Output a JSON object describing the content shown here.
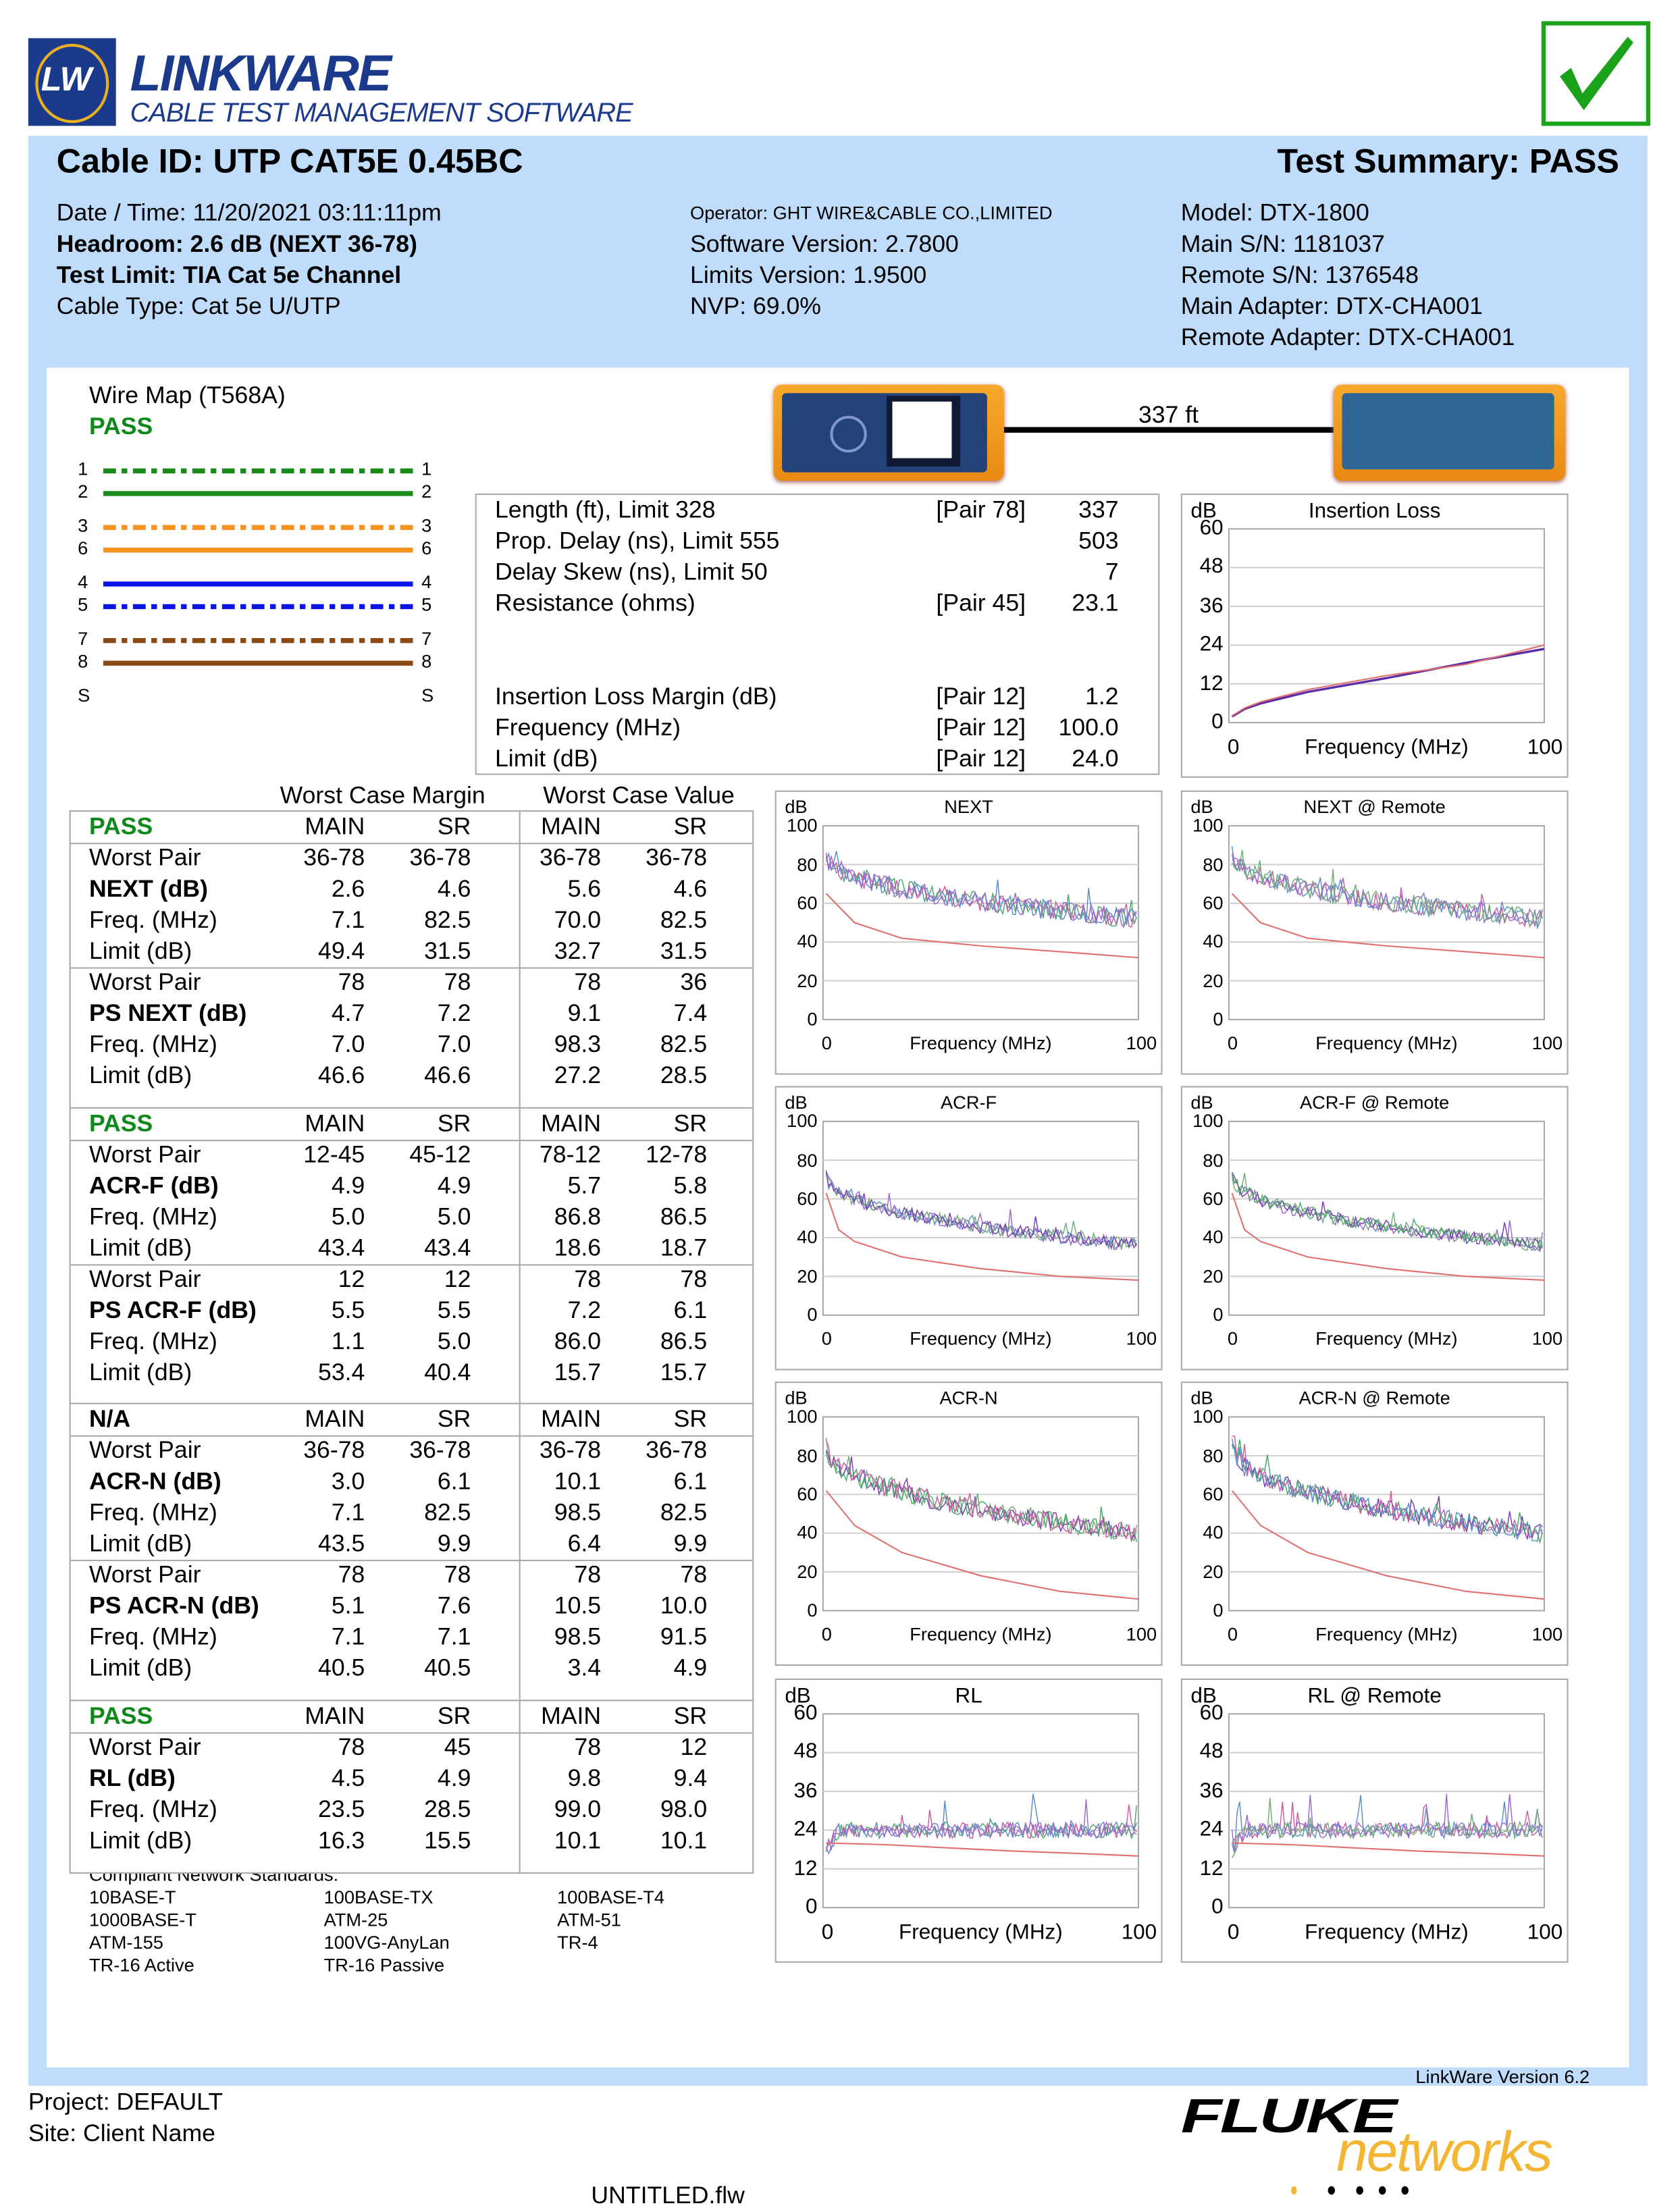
{
  "logo": {
    "mark": "LW",
    "name": "LinkWare",
    "tagline": "CABLE TEST MANAGEMENT SOFTWARE"
  },
  "pass_icon": "checkmark-icon",
  "header": {
    "cable_id": "Cable ID: UTP CAT5E 0.45BC",
    "test_summary": "Test Summary: PASS"
  },
  "info": {
    "col1": [
      "Date / Time: 11/20/2021 03:11:11pm",
      "Headroom: 2.6 dB (NEXT 36-78)",
      "Test Limit: TIA Cat 5e Channel",
      "Cable Type: Cat 5e U/UTP"
    ],
    "col2": [
      "Operator: GHT WIRE&CABLE CO.,LIMITED",
      "Software Version: 2.7800",
      "Limits Version: 1.9500",
      "NVP: 69.0%"
    ],
    "col3": [
      "Model: DTX-1800",
      "Main S/N: 1181037",
      "Remote S/N: 1376548",
      "Main Adapter: DTX-CHA001",
      "Remote Adapter: DTX-CHA001"
    ]
  },
  "wiremap": {
    "title": "Wire Map (T568A)",
    "status": "PASS",
    "wires": [
      {
        "pin": "1",
        "color": "#1a8a1a",
        "dashed": true
      },
      {
        "pin": "2",
        "color": "#1a8a1a",
        "dashed": false
      },
      {
        "pin": "3",
        "color": "#f7931e",
        "dashed": true
      },
      {
        "pin": "6",
        "color": "#f7931e",
        "dashed": false
      },
      {
        "pin": "4",
        "color": "#0a14e6",
        "dashed": false
      },
      {
        "pin": "5",
        "color": "#0a14e6",
        "dashed": true
      },
      {
        "pin": "7",
        "color": "#8b4a12",
        "dashed": true
      },
      {
        "pin": "8",
        "color": "#8b4a12",
        "dashed": false
      }
    ],
    "shield": "S"
  },
  "link": {
    "length_label": "337 ft"
  },
  "summary_rows": [
    {
      "label": "Length (ft), Limit 328",
      "pair": "[Pair 78]",
      "value": "337"
    },
    {
      "label": "Prop. Delay (ns), Limit 555",
      "pair": "",
      "value": "503"
    },
    {
      "label": "Delay Skew (ns), Limit 50",
      "pair": "",
      "value": "7"
    },
    {
      "label": "Resistance (ohms)",
      "pair": "[Pair 45]",
      "value": "23.1"
    },
    {
      "label": "Insertion Loss Margin (dB)",
      "pair": "[Pair 12]",
      "value": "1.2"
    },
    {
      "label": "Frequency (MHz)",
      "pair": "[Pair 12]",
      "value": "100.0"
    },
    {
      "label": "Limit (dB)",
      "pair": "[Pair 12]",
      "value": "24.0"
    }
  ],
  "table_headers": {
    "margin": "Worst Case Margin",
    "value": "Worst Case Value"
  },
  "tables": [
    {
      "status": "PASS",
      "status_color": "#0f8a1a",
      "cols": [
        "MAIN",
        "SR",
        "MAIN",
        "SR"
      ],
      "groups": [
        [
          {
            "label": "Worst Pair",
            "bold": false,
            "v": [
              "36-78",
              "36-78",
              "36-78",
              "36-78"
            ]
          },
          {
            "label": "NEXT (dB)",
            "bold": true,
            "v": [
              "2.6",
              "4.6",
              "5.6",
              "4.6"
            ]
          },
          {
            "label": "Freq. (MHz)",
            "bold": false,
            "v": [
              "7.1",
              "82.5",
              "70.0",
              "82.5"
            ]
          },
          {
            "label": "Limit (dB)",
            "bold": false,
            "v": [
              "49.4",
              "31.5",
              "32.7",
              "31.5"
            ]
          }
        ],
        [
          {
            "label": "Worst Pair",
            "bold": false,
            "v": [
              "78",
              "78",
              "78",
              "36"
            ]
          },
          {
            "label": "PS NEXT (dB)",
            "bold": true,
            "v": [
              "4.7",
              "7.2",
              "9.1",
              "7.4"
            ]
          },
          {
            "label": "Freq. (MHz)",
            "bold": false,
            "v": [
              "7.0",
              "7.0",
              "98.3",
              "82.5"
            ]
          },
          {
            "label": "Limit (dB)",
            "bold": false,
            "v": [
              "46.6",
              "46.6",
              "27.2",
              "28.5"
            ]
          }
        ]
      ]
    },
    {
      "status": "PASS",
      "status_color": "#0f8a1a",
      "cols": [
        "MAIN",
        "SR",
        "MAIN",
        "SR"
      ],
      "groups": [
        [
          {
            "label": "Worst Pair",
            "bold": false,
            "v": [
              "12-45",
              "45-12",
              "78-12",
              "12-78"
            ]
          },
          {
            "label": "ACR-F (dB)",
            "bold": true,
            "v": [
              "4.9",
              "4.9",
              "5.7",
              "5.8"
            ]
          },
          {
            "label": "Freq. (MHz)",
            "bold": false,
            "v": [
              "5.0",
              "5.0",
              "86.8",
              "86.5"
            ]
          },
          {
            "label": "Limit (dB)",
            "bold": false,
            "v": [
              "43.4",
              "43.4",
              "18.6",
              "18.7"
            ]
          }
        ],
        [
          {
            "label": "Worst Pair",
            "bold": false,
            "v": [
              "12",
              "12",
              "78",
              "78"
            ]
          },
          {
            "label": "PS ACR-F (dB)",
            "bold": true,
            "v": [
              "5.5",
              "5.5",
              "7.2",
              "6.1"
            ]
          },
          {
            "label": "Freq. (MHz)",
            "bold": false,
            "v": [
              "1.1",
              "5.0",
              "86.0",
              "86.5"
            ]
          },
          {
            "label": "Limit (dB)",
            "bold": false,
            "v": [
              "53.4",
              "40.4",
              "15.7",
              "15.7"
            ]
          }
        ]
      ]
    },
    {
      "status": "N/A",
      "status_color": "#000000",
      "cols": [
        "MAIN",
        "SR",
        "MAIN",
        "SR"
      ],
      "groups": [
        [
          {
            "label": "Worst Pair",
            "bold": false,
            "v": [
              "36-78",
              "36-78",
              "36-78",
              "36-78"
            ]
          },
          {
            "label": "ACR-N (dB)",
            "bold": true,
            "v": [
              "3.0",
              "6.1",
              "10.1",
              "6.1"
            ]
          },
          {
            "label": "Freq. (MHz)",
            "bold": false,
            "v": [
              "7.1",
              "82.5",
              "98.5",
              "82.5"
            ]
          },
          {
            "label": "Limit (dB)",
            "bold": false,
            "v": [
              "43.5",
              "9.9",
              "6.4",
              "9.9"
            ]
          }
        ],
        [
          {
            "label": "Worst Pair",
            "bold": false,
            "v": [
              "78",
              "78",
              "78",
              "78"
            ]
          },
          {
            "label": "PS ACR-N (dB)",
            "bold": true,
            "v": [
              "5.1",
              "7.6",
              "10.5",
              "10.0"
            ]
          },
          {
            "label": "Freq. (MHz)",
            "bold": false,
            "v": [
              "7.1",
              "7.1",
              "98.5",
              "91.5"
            ]
          },
          {
            "label": "Limit (dB)",
            "bold": false,
            "v": [
              "40.5",
              "40.5",
              "3.4",
              "4.9"
            ]
          }
        ]
      ]
    },
    {
      "status": "PASS",
      "status_color": "#0f8a1a",
      "cols": [
        "MAIN",
        "SR",
        "MAIN",
        "SR"
      ],
      "groups": [
        [
          {
            "label": "Worst Pair",
            "bold": false,
            "v": [
              "78",
              "45",
              "78",
              "12"
            ]
          },
          {
            "label": "RL (dB)",
            "bold": true,
            "v": [
              "4.5",
              "4.9",
              "9.8",
              "9.4"
            ]
          },
          {
            "label": "Freq. (MHz)",
            "bold": false,
            "v": [
              "23.5",
              "28.5",
              "99.0",
              "98.0"
            ]
          },
          {
            "label": "Limit (dB)",
            "bold": false,
            "v": [
              "16.3",
              "15.5",
              "10.1",
              "10.1"
            ]
          }
        ]
      ]
    }
  ],
  "standards": {
    "title": "Compliant Network Standards:",
    "items": [
      "10BASE-T",
      "100BASE-TX",
      "100BASE-T4",
      "1000BASE-T",
      "ATM-25",
      "ATM-51",
      "ATM-155",
      "100VG-AnyLan",
      "TR-4",
      "TR-16 Active",
      "TR-16 Passive"
    ]
  },
  "chart_data": [
    {
      "id": "il",
      "type": "line",
      "title": "Insertion Loss",
      "ylabel": "dB",
      "xlabel": "Frequency (MHz)",
      "xlim": [
        0,
        100
      ],
      "ylim": [
        0,
        60
      ],
      "yticks": [
        60,
        48,
        36,
        24,
        12,
        0
      ],
      "xticks": [
        "0",
        "100"
      ],
      "big": true,
      "limit": {
        "x": [
          1,
          5,
          10,
          25,
          50,
          75,
          100
        ],
        "y": [
          2.1,
          4.5,
          6.4,
          10.2,
          14.6,
          18.0,
          24.0
        ]
      },
      "series": [
        {
          "name": "measured",
          "color": "#5a2ca8",
          "x": [
            1,
            5,
            10,
            25,
            50,
            75,
            100
          ],
          "y": [
            1.9,
            4.2,
            5.9,
            9.5,
            13.8,
            18.5,
            22.8
          ]
        }
      ]
    },
    {
      "id": "next",
      "type": "line",
      "title": "NEXT",
      "ylabel": "dB",
      "xlabel": "Frequency (MHz)",
      "xlim": [
        0,
        100
      ],
      "ylim": [
        0,
        100
      ],
      "yticks": [
        100,
        80,
        60,
        40,
        20,
        0
      ],
      "xticks": [
        "0",
        "100"
      ],
      "big": false,
      "limit": {
        "x": [
          1,
          10,
          25,
          50,
          75,
          100
        ],
        "y": [
          65,
          50,
          42,
          38,
          35,
          32
        ]
      },
      "noise": {
        "start": 85,
        "end": 52,
        "amp": 10,
        "seed": 3
      }
    },
    {
      "id": "next_remote",
      "type": "line",
      "title": "NEXT @ Remote",
      "ylabel": "dB",
      "xlabel": "Frequency (MHz)",
      "xlim": [
        0,
        100
      ],
      "ylim": [
        0,
        100
      ],
      "yticks": [
        100,
        80,
        60,
        40,
        20,
        0
      ],
      "xticks": [
        "0",
        "100"
      ],
      "big": false,
      "limit": {
        "x": [
          1,
          10,
          25,
          50,
          75,
          100
        ],
        "y": [
          65,
          50,
          42,
          38,
          35,
          32
        ]
      },
      "noise": {
        "start": 85,
        "end": 52,
        "amp": 10,
        "seed": 7
      }
    },
    {
      "id": "acrf",
      "type": "line",
      "title": "ACR-F",
      "ylabel": "dB",
      "xlabel": "Frequency (MHz)",
      "xlim": [
        0,
        100
      ],
      "ylim": [
        0,
        100
      ],
      "yticks": [
        100,
        80,
        60,
        40,
        20,
        0
      ],
      "xticks": [
        "0",
        "100"
      ],
      "big": false,
      "limit": {
        "x": [
          1,
          5,
          10,
          25,
          50,
          75,
          100
        ],
        "y": [
          63,
          44,
          38,
          30,
          24,
          20,
          18
        ]
      },
      "noise": {
        "start": 72,
        "end": 36,
        "amp": 7,
        "seed": 11
      }
    },
    {
      "id": "acrf_remote",
      "type": "line",
      "title": "ACR-F @ Remote",
      "ylabel": "dB",
      "xlabel": "Frequency (MHz)",
      "xlim": [
        0,
        100
      ],
      "ylim": [
        0,
        100
      ],
      "yticks": [
        100,
        80,
        60,
        40,
        20,
        0
      ],
      "xticks": [
        "0",
        "100"
      ],
      "big": false,
      "limit": {
        "x": [
          1,
          5,
          10,
          25,
          50,
          75,
          100
        ],
        "y": [
          63,
          44,
          38,
          30,
          24,
          20,
          18
        ]
      },
      "noise": {
        "start": 72,
        "end": 36,
        "amp": 7,
        "seed": 13
      }
    },
    {
      "id": "acrn",
      "type": "line",
      "title": "ACR-N",
      "ylabel": "dB",
      "xlabel": "Frequency (MHz)",
      "xlim": [
        0,
        100
      ],
      "ylim": [
        0,
        100
      ],
      "yticks": [
        100,
        80,
        60,
        40,
        20,
        0
      ],
      "xticks": [
        "0",
        "100"
      ],
      "big": false,
      "limit": {
        "x": [
          1,
          10,
          25,
          50,
          75,
          100
        ],
        "y": [
          62,
          44,
          30,
          18,
          10,
          6
        ]
      },
      "noise": {
        "start": 85,
        "end": 40,
        "amp": 10,
        "seed": 17
      }
    },
    {
      "id": "acrn_remote",
      "type": "line",
      "title": "ACR-N @ Remote",
      "ylabel": "dB",
      "xlabel": "Frequency (MHz)",
      "xlim": [
        0,
        100
      ],
      "ylim": [
        0,
        100
      ],
      "yticks": [
        100,
        80,
        60,
        40,
        20,
        0
      ],
      "xticks": [
        "0",
        "100"
      ],
      "big": false,
      "limit": {
        "x": [
          1,
          10,
          25,
          50,
          75,
          100
        ],
        "y": [
          62,
          44,
          30,
          18,
          10,
          6
        ]
      },
      "noise": {
        "start": 85,
        "end": 40,
        "amp": 10,
        "seed": 19
      }
    },
    {
      "id": "rl",
      "type": "line",
      "title": "RL",
      "ylabel": "dB",
      "xlabel": "Frequency (MHz)",
      "xlim": [
        0,
        100
      ],
      "ylim": [
        0,
        60
      ],
      "yticks": [
        60,
        48,
        36,
        24,
        12,
        0
      ],
      "xticks": [
        "0",
        "100"
      ],
      "big": true,
      "limit": {
        "x": [
          1,
          20,
          40,
          60,
          80,
          100
        ],
        "y": [
          20,
          19.5,
          18.5,
          17.5,
          16.8,
          16
        ]
      },
      "noise": {
        "start": 28,
        "end": 27,
        "amp": 5,
        "seed": 23,
        "spikes": true
      }
    },
    {
      "id": "rl_remote",
      "type": "line",
      "title": "RL @ Remote",
      "ylabel": "dB",
      "xlabel": "Frequency (MHz)",
      "xlim": [
        0,
        100
      ],
      "ylim": [
        0,
        60
      ],
      "yticks": [
        60,
        48,
        36,
        24,
        12,
        0
      ],
      "xticks": [
        "0",
        "100"
      ],
      "big": true,
      "limit": {
        "x": [
          1,
          20,
          40,
          60,
          80,
          100
        ],
        "y": [
          20,
          19.5,
          18.5,
          17.5,
          16.8,
          16
        ]
      },
      "noise": {
        "start": 28,
        "end": 27,
        "amp": 5,
        "seed": 29,
        "spikes": true
      }
    }
  ],
  "footer": {
    "version": "LinkWare Version  6.2",
    "project": "Project: DEFAULT",
    "site": "Site: Client Name",
    "file": "UNTITLED.flw",
    "brand_top": "FLUKE",
    "brand_bottom": "networks"
  }
}
